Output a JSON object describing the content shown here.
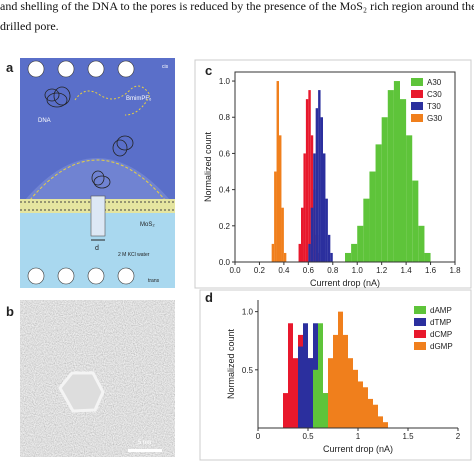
{
  "header": {
    "lines": [
      "and shelling of the DNA to the pores is reduced by the presence of the MoS₂ rich region around the",
      "drilled pore."
    ]
  },
  "panels": {
    "a": {
      "label": "a",
      "texts": {
        "cis": "cis",
        "salt": "BmimPF₆",
        "dna": "DNA",
        "membrane": "MoS₂",
        "water": "2 M KCl water",
        "trans": "trans",
        "diameter": "d"
      }
    },
    "b": {
      "label": "b",
      "scale": "5 nm"
    },
    "c": {
      "label": "c"
    },
    "d": {
      "label": "d"
    }
  },
  "chart_data": [
    {
      "type": "histogram",
      "xlabel": "Current drop (nA)",
      "ylabel": "Normalized count",
      "xlim": [
        0,
        1.8
      ],
      "ylim": [
        0,
        1.05
      ],
      "xticks": [
        {
          "value": 0,
          "label": "0.0"
        },
        0.2,
        0.4,
        0.6,
        0.8,
        {
          "value": 1,
          "label": "1.0"
        },
        1.2,
        1.4,
        1.6,
        1.8
      ],
      "yticks": [
        {
          "value": 0,
          "label": "0.0"
        },
        0.2,
        0.4,
        0.6,
        0.8,
        {
          "value": 1,
          "label": "1.0"
        }
      ],
      "legend": "upper right",
      "series": [
        {
          "name": "A30",
          "color": "#5ec43a",
          "bins": [
            0.9,
            0.95,
            1.0,
            1.05,
            1.1,
            1.15,
            1.2,
            1.25,
            1.3,
            1.35,
            1.4,
            1.45,
            1.5,
            1.55,
            1.6
          ],
          "values": [
            0.05,
            0.1,
            0.2,
            0.35,
            0.5,
            0.65,
            0.8,
            0.95,
            1.0,
            0.9,
            0.7,
            0.45,
            0.2,
            0.05
          ]
        },
        {
          "name": "C30",
          "color": "#e8182c",
          "bins": [
            0.52,
            0.54,
            0.56,
            0.58,
            0.6,
            0.62,
            0.64,
            0.66,
            0.68,
            0.7
          ],
          "values": [
            0.1,
            0.3,
            0.6,
            0.9,
            0.95,
            0.7,
            0.4,
            0.15,
            0.05
          ]
        },
        {
          "name": "T30",
          "color": "#2b2f9e",
          "bins": [
            0.6,
            0.62,
            0.64,
            0.66,
            0.68,
            0.7,
            0.72,
            0.74,
            0.76,
            0.78,
            0.8
          ],
          "values": [
            0.1,
            0.3,
            0.6,
            0.85,
            0.95,
            0.8,
            0.6,
            0.35,
            0.15,
            0.05
          ]
        },
        {
          "name": "G30",
          "color": "#f07f1c",
          "bins": [
            0.3,
            0.32,
            0.34,
            0.36,
            0.38,
            0.4,
            0.42
          ],
          "values": [
            0.1,
            0.5,
            1.0,
            0.7,
            0.3,
            0.05
          ]
        }
      ]
    },
    {
      "type": "histogram",
      "xlabel": "Current drop (nA)",
      "ylabel": "Normalized count",
      "xlim": [
        0,
        2
      ],
      "ylim": [
        0,
        1.1
      ],
      "xticks": [
        0,
        0.5,
        1,
        1.5,
        2
      ],
      "yticks": [
        0.5,
        {
          "value": 1,
          "label": "1.0"
        }
      ],
      "legend": "upper right",
      "series": [
        {
          "name": "dAMP",
          "color": "#5ec43a",
          "bins": [
            0.55,
            0.6,
            0.65,
            0.7
          ],
          "values": [
            0.5,
            0.9,
            0.3
          ]
        },
        {
          "name": "dTMP",
          "color": "#2b2f9e",
          "bins": [
            0.4,
            0.45,
            0.5,
            0.55,
            0.6
          ],
          "values": [
            0.7,
            0.9,
            0.6,
            0.9
          ]
        },
        {
          "name": "dCMP",
          "color": "#e8182c",
          "bins": [
            0.25,
            0.3,
            0.35,
            0.4,
            0.45,
            0.5,
            0.55,
            0.6
          ],
          "values": [
            0.3,
            0.9,
            0.6,
            0.8,
            0.5,
            0.6,
            0.2
          ]
        },
        {
          "name": "dGMP",
          "color": "#f07f1c",
          "bins": [
            0.6,
            0.65,
            0.7,
            0.75,
            0.8,
            0.85,
            0.9,
            0.95,
            1.0,
            1.05,
            1.1,
            1.15,
            1.2,
            1.25,
            1.3
          ],
          "values": [
            0.1,
            0.3,
            0.6,
            0.8,
            1.0,
            0.8,
            0.6,
            0.5,
            0.4,
            0.35,
            0.25,
            0.2,
            0.1,
            0.05
          ]
        }
      ]
    }
  ]
}
